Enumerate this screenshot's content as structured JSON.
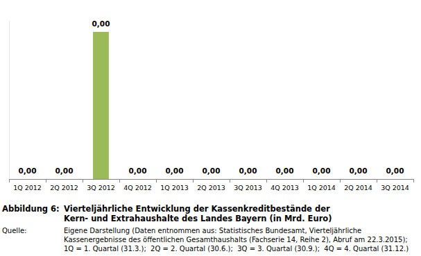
{
  "chart_data": {
    "type": "bar",
    "title": "Vierteljährliche Entwicklung der Kassenkreditbestände der Kern- und Extrahaushalte des Landes Bayern (in Mrd. Euro)",
    "categories": [
      "1Q 2012",
      "2Q 2012",
      "3Q 2012",
      "4Q 2012",
      "1Q 2013",
      "2Q 2013",
      "3Q 2013",
      "4Q 2013",
      "1Q 2014",
      "2Q 2014",
      "3Q 2014"
    ],
    "values": [
      0,
      0,
      0.004,
      0,
      0,
      0,
      0,
      0,
      0,
      0,
      0
    ],
    "value_labels": [
      "0,00",
      "0,00",
      "0,00",
      "0,00",
      "0,00",
      "0,00",
      "0,00",
      "0,00",
      "0,00",
      "0,00",
      "0,00"
    ],
    "color": "#9bbb59",
    "ylim": [
      0,
      0.0043
    ],
    "data_labels": true,
    "tick_labels": "x",
    "grid": false,
    "annotations": [
      "Abbildung 6:",
      "Quelle:",
      "Eigene Darstellung (Daten entnommen aus: Statistisches Bundesamt, Vierteljährliche Kassenergebnisse des öffentlichen Gesamthaushalts (Fachserie 14, Reihe 2), Abruf am 22.3.2015);",
      "1Q = 1. Quartal (31.3.);  2Q = 2. Quartal (30.6.);  3Q = 3. Quartal (30.9.);  4Q = 4. Quartal (31.12.)"
    ]
  }
}
